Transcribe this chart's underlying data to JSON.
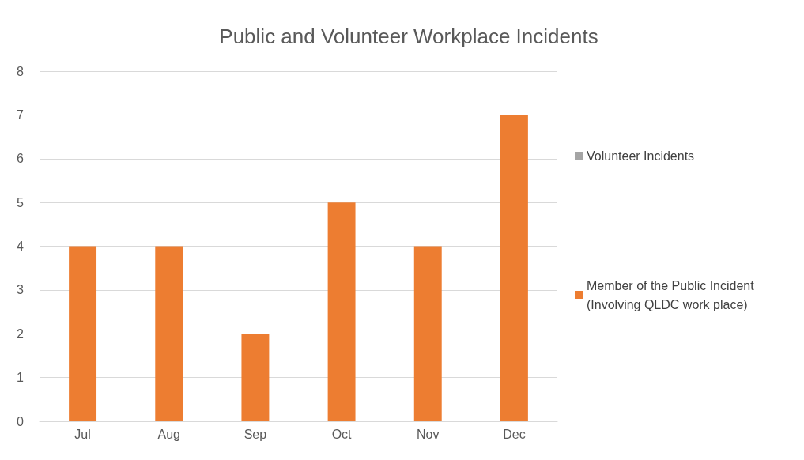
{
  "chart_data": {
    "type": "bar",
    "title": "Public and Volunteer Workplace Incidents",
    "categories": [
      "Jul",
      "Aug",
      "Sep",
      "Oct",
      "Nov",
      "Dec"
    ],
    "series": [
      {
        "name": "Volunteer Incidents",
        "color": "#a5a5a5",
        "values": [
          0,
          0,
          0,
          0,
          0,
          0
        ]
      },
      {
        "name": "Member of the Public Incident (Involving QLDC work place)",
        "color": "#ed7d31",
        "values": [
          4,
          4,
          2,
          5,
          4,
          7
        ]
      }
    ],
    "stacked": true,
    "ylim": [
      0,
      8
    ],
    "yticks": [
      0,
      1,
      2,
      3,
      4,
      5,
      6,
      7,
      8
    ],
    "grid": "y",
    "legend": "right"
  }
}
